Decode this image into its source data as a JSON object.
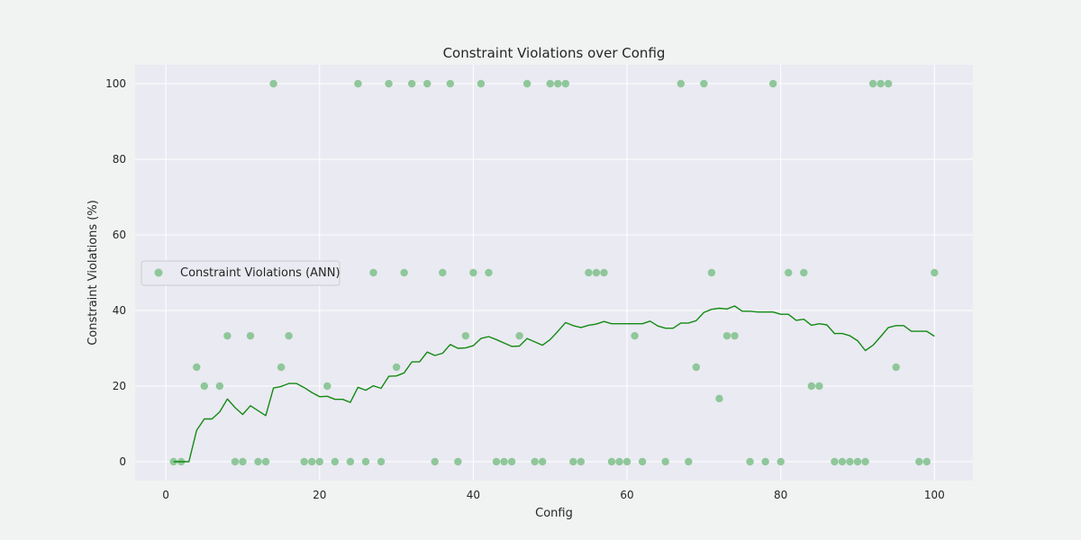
{
  "chart_data": {
    "type": "scatter",
    "title": "Constraint Violations over Config",
    "xlabel": "Config",
    "ylabel": "Constraint Violations (%)",
    "xlim": [
      -4,
      105
    ],
    "ylim": [
      -5,
      105
    ],
    "xticks": [
      0,
      20,
      40,
      60,
      80,
      100
    ],
    "yticks": [
      0,
      20,
      40,
      60,
      80,
      100
    ],
    "grid": true,
    "legend_position": "center-left",
    "series": [
      {
        "name": "Constraint Violations (ANN)",
        "kind": "scatter",
        "color": "#8fc79a",
        "x": [
          1,
          2,
          4,
          5,
          7,
          8,
          9,
          10,
          11,
          12,
          13,
          14,
          15,
          16,
          18,
          19,
          20,
          21,
          22,
          24,
          25,
          26,
          27,
          28,
          29,
          30,
          31,
          32,
          34,
          35,
          36,
          37,
          38,
          39,
          40,
          41,
          42,
          43,
          44,
          45,
          46,
          47,
          48,
          49,
          50,
          51,
          52,
          53,
          54,
          55,
          56,
          57,
          58,
          59,
          60,
          61,
          62,
          65,
          67,
          68,
          69,
          70,
          71,
          72,
          73,
          74,
          76,
          78,
          79,
          80,
          81,
          83,
          84,
          85,
          87,
          88,
          89,
          90,
          91,
          92,
          93,
          94,
          95,
          98,
          99,
          100
        ],
        "y": [
          0,
          0,
          25,
          20,
          20,
          33.3,
          0,
          0,
          33.3,
          0,
          0,
          100,
          25,
          33.3,
          0,
          0,
          0,
          20,
          0,
          0,
          100,
          0,
          50,
          0,
          100,
          25,
          50,
          100,
          100,
          0,
          50,
          100,
          0,
          33.3,
          50,
          100,
          50,
          0,
          0,
          0,
          33.3,
          100,
          0,
          0,
          100,
          100,
          100,
          0,
          0,
          50,
          50,
          50,
          0,
          0,
          0,
          33.3,
          0,
          0,
          100,
          0,
          25,
          100,
          50,
          16.7,
          33.3,
          33.3,
          0,
          0,
          100,
          0,
          50,
          50,
          20,
          20,
          0,
          0,
          0,
          0,
          0,
          100,
          100,
          100,
          25,
          0,
          0,
          50
        ]
      },
      {
        "name": "",
        "kind": "line",
        "color": "#138a13",
        "x": [
          1,
          2,
          3,
          4,
          5,
          6,
          7,
          8,
          9,
          10,
          11,
          12,
          13,
          14,
          15,
          16,
          17,
          18,
          19,
          20,
          21,
          22,
          23,
          24,
          25,
          26,
          27,
          28,
          29,
          30,
          31,
          32,
          33,
          34,
          35,
          36,
          37,
          38,
          39,
          40,
          41,
          42,
          43,
          44,
          45,
          46,
          47,
          48,
          49,
          50,
          51,
          52,
          53,
          54,
          55,
          56,
          57,
          58,
          59,
          60,
          61,
          62,
          63,
          64,
          65,
          66,
          67,
          68,
          69,
          70,
          71,
          72,
          73,
          74,
          75,
          76,
          77,
          78,
          79,
          80,
          81,
          82,
          83,
          84,
          85,
          86,
          87,
          88,
          89,
          90,
          91,
          92,
          93,
          94,
          95,
          96,
          97,
          98,
          99,
          100
        ],
        "y": [
          0,
          0,
          0,
          8.3,
          11.3,
          11.3,
          13.2,
          16.6,
          14.3,
          12.5,
          14.8,
          13.5,
          12.2,
          19.5,
          19.9,
          20.7,
          20.7,
          19.6,
          18.3,
          17.2,
          17.3,
          16.5,
          16.5,
          15.7,
          19.7,
          18.9,
          20.1,
          19.4,
          22.6,
          22.7,
          23.5,
          26.4,
          26.4,
          29.0,
          28.1,
          28.7,
          31.0,
          30.0,
          30.1,
          30.7,
          32.6,
          33.1,
          32.3,
          31.4,
          30.5,
          30.6,
          32.6,
          31.7,
          30.8,
          32.3,
          34.5,
          36.8,
          36.0,
          35.5,
          36.1,
          36.4,
          37.1,
          36.5,
          36.5,
          36.5,
          36.5,
          36.5,
          37.2,
          35.9,
          35.3,
          35.3,
          36.7,
          36.7,
          37.3,
          39.5,
          40.3,
          40.6,
          40.4,
          41.2,
          39.8,
          39.8,
          39.6,
          39.6,
          39.6,
          39.0,
          39.0,
          37.4,
          37.7,
          36.1,
          36.5,
          36.2,
          33.9,
          33.9,
          33.3,
          32.0,
          29.4,
          30.8,
          33.1,
          35.5,
          36.0,
          36.0,
          34.5,
          34.5,
          34.5,
          33.2
        ]
      }
    ]
  },
  "colors": {
    "figure_background": "#f1f2f2",
    "plot_background": "#eaeaf2",
    "grid": "#ffffff",
    "text": "#262626"
  }
}
